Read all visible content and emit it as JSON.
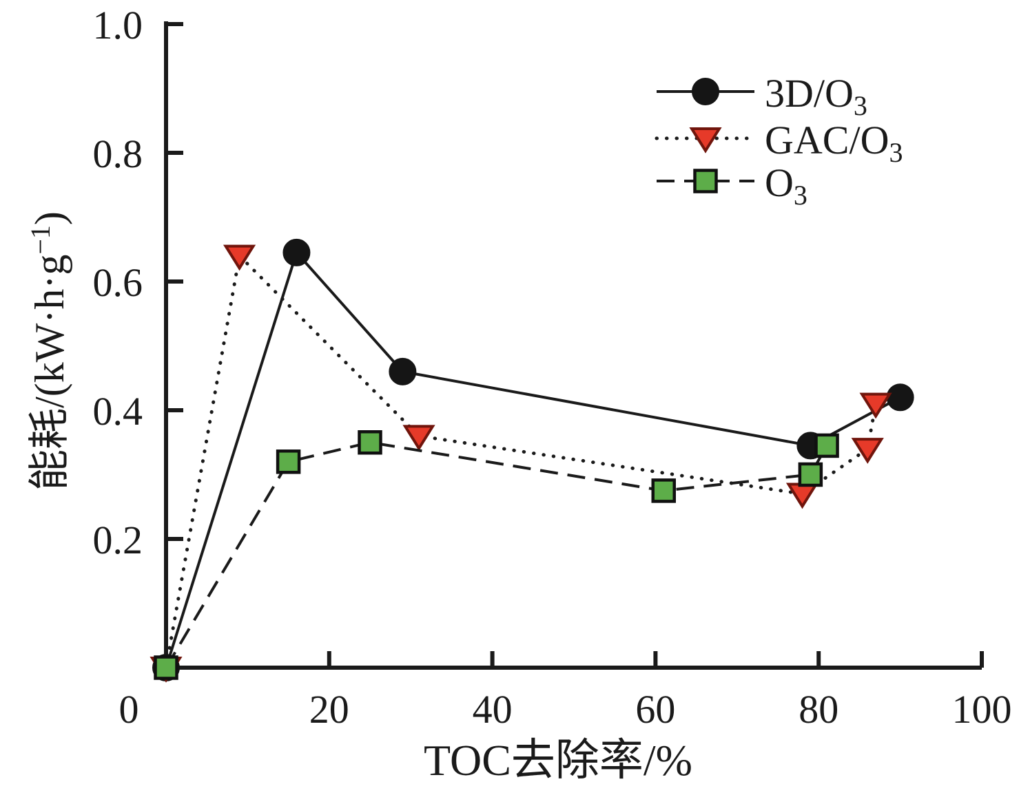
{
  "chart_data": {
    "type": "line",
    "title": "",
    "xlabel": "TOC去除率/%",
    "ylabel": "能耗/(kW·h·g⁻¹)",
    "ylabel_parts": {
      "prefix": "能耗/(kW·h·g",
      "sup": "−1",
      "suffix": ")"
    },
    "xlim": [
      0,
      100
    ],
    "ylim": [
      0,
      1.0
    ],
    "x_ticks": [
      0,
      20,
      40,
      60,
      80,
      100
    ],
    "y_ticks": [
      0.2,
      0.4,
      0.6,
      0.8,
      1.0
    ],
    "origin_label": "0",
    "grid": false,
    "legend_position": "top-right",
    "colors": {
      "axis": "#1a1a1a",
      "text": "#1a1a1a",
      "black_marker": "#151515",
      "red_fill": "#e63a29",
      "red_edge": "#70150c",
      "green_fill": "#5dad49",
      "green_edge": "#101010",
      "background": "#ffffff"
    },
    "series": [
      {
        "id": "3d-o3",
        "name": "3D/O3",
        "label_main": "3D/O",
        "label_sub": "3",
        "marker": "circle",
        "line_style": "solid",
        "line_color": "#1a1a1a",
        "marker_fill": "#151515",
        "marker_edge": "#151515",
        "points": [
          [
            0,
            0
          ],
          [
            16,
            0.645
          ],
          [
            29,
            0.46
          ],
          [
            79,
            0.345
          ],
          [
            90,
            0.42
          ]
        ]
      },
      {
        "id": "gac-o3",
        "name": "GAC/O3",
        "label_main": "GAC/O",
        "label_sub": "3",
        "marker": "triangle-down",
        "line_style": "dotted",
        "line_color": "#1a1a1a",
        "marker_fill": "#e63a29",
        "marker_edge": "#70150c",
        "points": [
          [
            0,
            0
          ],
          [
            9,
            0.64
          ],
          [
            31,
            0.36
          ],
          [
            78,
            0.27
          ],
          [
            86,
            0.34
          ],
          [
            87,
            0.41
          ]
        ]
      },
      {
        "id": "o3",
        "name": "O3",
        "label_main": "O",
        "label_sub": "3",
        "marker": "square",
        "line_style": "dashed",
        "line_color": "#1a1a1a",
        "marker_fill": "#5dad49",
        "marker_edge": "#101010",
        "points": [
          [
            0,
            0
          ],
          [
            15,
            0.32
          ],
          [
            25,
            0.35
          ],
          [
            61,
            0.275
          ],
          [
            79,
            0.3
          ],
          [
            81,
            0.345
          ]
        ]
      }
    ]
  }
}
